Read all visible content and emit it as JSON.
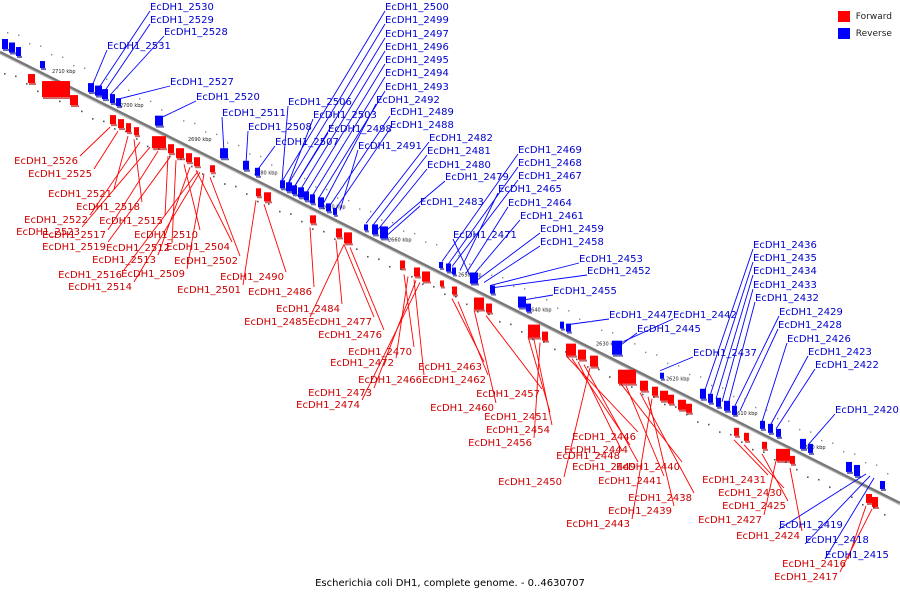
{
  "caption": "Escherichia coli DH1, complete genome. - 0..4630707",
  "legend": [
    {
      "label": "Forward",
      "color": "#ff0000"
    },
    {
      "label": "Reverse",
      "color": "#0000ff"
    }
  ],
  "colors": {
    "forward": "#ff0000",
    "reverse": "#0000ff",
    "forward_text": "#cc0000",
    "reverse_text": "#0000cc",
    "axis": "#777777",
    "ticks": "#000000"
  },
  "axis_ticks": [
    "2710 kbp",
    "2700 kbp",
    "2690 kbp",
    "2680 kbp",
    "2670 kbp",
    "2660 kbp",
    "2650 kbp",
    "2640 kbp",
    "2630 kbp",
    "2620 kbp",
    "2610 kbp",
    "2600 kbp"
  ],
  "reverse_genes": [
    "EcDH1_2530",
    "EcDH1_2529",
    "EcDH1_2528",
    "EcDH1_2531",
    "EcDH1_2527",
    "EcDH1_2520",
    "EcDH1_2511",
    "EcDH1_2508",
    "EcDH1_2507",
    "EcDH1_2506",
    "EcDH1_2503",
    "EcDH1_2498",
    "EcDH1_2500",
    "EcDH1_2499",
    "EcDH1_2497",
    "EcDH1_2496",
    "EcDH1_2495",
    "EcDH1_2494",
    "EcDH1_2493",
    "EcDH1_2492",
    "EcDH1_2489",
    "EcDH1_2488",
    "EcDH1_2491",
    "EcDH1_2482",
    "EcDH1_2481",
    "EcDH1_2480",
    "EcDH1_2479",
    "EcDH1_2483",
    "EcDH1_2469",
    "EcDH1_2468",
    "EcDH1_2467",
    "EcDH1_2465",
    "EcDH1_2464",
    "EcDH1_2471",
    "EcDH1_2461",
    "EcDH1_2459",
    "EcDH1_2458",
    "EcDH1_2453",
    "EcDH1_2452",
    "EcDH1_2455",
    "EcDH1_2447",
    "EcDH1_2442",
    "EcDH1_2445",
    "EcDH1_2437",
    "EcDH1_2436",
    "EcDH1_2435",
    "EcDH1_2434",
    "EcDH1_2433",
    "EcDH1_2432",
    "EcDH1_2429",
    "EcDH1_2428",
    "EcDH1_2426",
    "EcDH1_2423",
    "EcDH1_2422",
    "EcDH1_2420",
    "EcDH1_2419",
    "EcDH1_2418",
    "EcDH1_2415"
  ],
  "forward_genes": [
    "EcDH1_2526",
    "EcDH1_2525",
    "EcDH1_2521",
    "EcDH1_2518",
    "EcDH1_2522",
    "EcDH1_2523",
    "EcDH1_2517",
    "EcDH1_2515",
    "EcDH1_2519",
    "EcDH1_2512",
    "EcDH1_2510",
    "EcDH1_2513",
    "EcDH1_2504",
    "EcDH1_2502",
    "EcDH1_2516",
    "EcDH1_2509",
    "EcDH1_2514",
    "EcDH1_2501",
    "EcDH1_2490",
    "EcDH1_2486",
    "EcDH1_2484",
    "EcDH1_2485",
    "EcDH1_2477",
    "EcDH1_2476",
    "EcDH1_2470",
    "EcDH1_2472",
    "EcDH1_2466",
    "EcDH1_2473",
    "EcDH1_2474",
    "EcDH1_2463",
    "EcDH1_2462",
    "EcDH1_2460",
    "EcDH1_2457",
    "EcDH1_2451",
    "EcDH1_2454",
    "EcDH1_2456",
    "EcDH1_2446",
    "EcDH1_2444",
    "EcDH1_2448",
    "EcDH1_2449",
    "EcDH1_2450",
    "EcDH1_2440",
    "EcDH1_2441",
    "EcDH1_2438",
    "EcDH1_2439",
    "EcDH1_2443",
    "EcDH1_2431",
    "EcDH1_2430",
    "EcDH1_2425",
    "EcDH1_2427",
    "EcDH1_2424",
    "EcDH1_2416",
    "EcDH1_2417"
  ]
}
